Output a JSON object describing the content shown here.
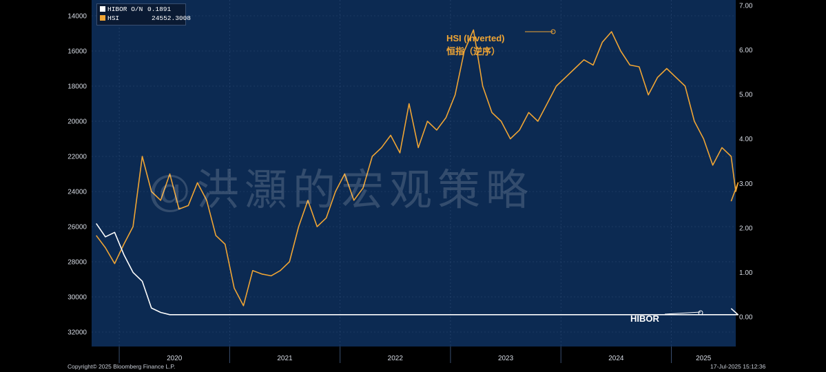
{
  "chart_data": {
    "type": "line",
    "title": "",
    "legend": {
      "placement": "top-left",
      "entries": [
        {
          "name": "HIBOR O/N",
          "last_value": "0.1891",
          "color": "#ffffff"
        },
        {
          "name": "HSI",
          "last_value": "24552.3008",
          "color": "#f0a534"
        }
      ]
    },
    "left_axis": {
      "series": "HSI",
      "inverted": true,
      "range": [
        14000,
        32000
      ],
      "ticks": [
        "14000",
        "16000",
        "18000",
        "20000",
        "22000",
        "24000",
        "26000",
        "28000",
        "30000",
        "32000"
      ]
    },
    "right_axis": {
      "series": "HIBOR O/N",
      "range": [
        0,
        7
      ],
      "ticks": [
        "0.00",
        "1.00",
        "2.00",
        "3.00",
        "4.00",
        "5.00",
        "6.00",
        "7.00"
      ]
    },
    "x_axis": {
      "range": [
        "2019-10",
        "2025-07"
      ],
      "year_labels": [
        "2020",
        "2021",
        "2022",
        "2023",
        "2024",
        "2025"
      ]
    },
    "grid": true,
    "series": [
      {
        "name": "HSI",
        "axis": "left",
        "color": "#f0a534",
        "points": [
          [
            "2019-10",
            26500
          ],
          [
            "2019-11",
            27200
          ],
          [
            "2019-12",
            28100
          ],
          [
            "2020-01",
            27000
          ],
          [
            "2020-02",
            26000
          ],
          [
            "2020-03",
            22000
          ],
          [
            "2020-04",
            24000
          ],
          [
            "2020-05",
            24500
          ],
          [
            "2020-06",
            23000
          ],
          [
            "2020-07",
            25000
          ],
          [
            "2020-08",
            24800
          ],
          [
            "2020-09",
            23500
          ],
          [
            "2020-10",
            24500
          ],
          [
            "2020-11",
            26500
          ],
          [
            "2020-12",
            27000
          ],
          [
            "2021-01",
            29500
          ],
          [
            "2021-02",
            30500
          ],
          [
            "2021-03",
            28500
          ],
          [
            "2021-04",
            28700
          ],
          [
            "2021-05",
            28800
          ],
          [
            "2021-06",
            28500
          ],
          [
            "2021-07",
            28000
          ],
          [
            "2021-08",
            26000
          ],
          [
            "2021-09",
            24500
          ],
          [
            "2021-10",
            26000
          ],
          [
            "2021-11",
            25500
          ],
          [
            "2021-12",
            24000
          ],
          [
            "2022-01",
            23000
          ],
          [
            "2022-02",
            24500
          ],
          [
            "2022-03",
            23800
          ],
          [
            "2022-04",
            22000
          ],
          [
            "2022-05",
            21500
          ],
          [
            "2022-06",
            20800
          ],
          [
            "2022-07",
            21800
          ],
          [
            "2022-08",
            19000
          ],
          [
            "2022-09",
            21500
          ],
          [
            "2022-10",
            20000
          ],
          [
            "2022-11",
            20500
          ],
          [
            "2022-12",
            19800
          ],
          [
            "2023-01",
            18500
          ],
          [
            "2023-02",
            16000
          ],
          [
            "2023-03",
            14800
          ],
          [
            "2023-04",
            18000
          ],
          [
            "2023-05",
            19500
          ],
          [
            "2023-06",
            20000
          ],
          [
            "2023-07",
            21000
          ],
          [
            "2023-08",
            20500
          ],
          [
            "2023-09",
            19500
          ],
          [
            "2023-10",
            20000
          ],
          [
            "2023-11",
            19000
          ],
          [
            "2023-12",
            18000
          ],
          [
            "2024-01",
            17500
          ],
          [
            "2024-02",
            17000
          ],
          [
            "2024-03",
            16500
          ],
          [
            "2024-04",
            16800
          ],
          [
            "2024-05",
            15500
          ],
          [
            "2024-06",
            14900
          ],
          [
            "2024-07",
            16000
          ],
          [
            "2024-08",
            16800
          ],
          [
            "2024-09",
            16900
          ],
          [
            "2024-10",
            18500
          ],
          [
            "2024-11",
            17500
          ],
          [
            "2024-12",
            17000
          ],
          [
            "2025-01",
            17500
          ],
          [
            "2025-02",
            18000
          ],
          [
            "2025-03",
            20000
          ],
          [
            "2025-04",
            21000
          ],
          [
            "2025-05",
            22500
          ],
          [
            "2025-06",
            21500
          ],
          [
            "2025-07",
            22000
          ],
          [
            "2025-07",
            24000
          ],
          [
            "2025-07",
            23500
          ],
          [
            "2025-07",
            24552
          ]
        ]
      },
      {
        "name": "HIBOR O/N",
        "axis": "right",
        "color": "#ffffff",
        "points": [
          [
            "2019-10",
            2.1
          ],
          [
            "2019-11",
            1.8
          ],
          [
            "2019-12",
            1.9
          ],
          [
            "2020-01",
            1.4
          ],
          [
            "2020-02",
            1.0
          ],
          [
            "2020-03",
            0.8
          ],
          [
            "2020-04",
            0.2
          ],
          [
            "2020-05",
            0.1
          ],
          [
            "2020-06",
            0.05
          ],
          [
            "2020-07",
            0.05
          ],
          [
            "2020-08",
            0.05
          ],
          [
            "2020-09",
            0.05
          ],
          [
            "2020-10",
            0.05
          ],
          [
            "2020-11",
            0.05
          ],
          [
            "2020-12",
            0.05
          ],
          [
            "2021-01",
            0.05
          ],
          [
            "2021-02",
            0.05
          ],
          [
            "2021-03",
            0.05
          ],
          [
            "2021-04",
            0.05
          ],
          [
            "2021-05",
            0.05
          ],
          [
            "2021-06",
            0.05
          ],
          [
            "2021-07",
            0.05
          ],
          [
            "2021-08",
            0.05
          ],
          [
            "2021-09",
            0.05
          ],
          [
            "2021-10",
            0.05
          ],
          [
            "2021-11",
            0.05
          ],
          [
            "2021-12",
            0.05
          ],
          [
            "2022-01",
            0.05
          ],
          [
            "2022-02",
            0.05
          ],
          [
            "2022-03",
            0.05
          ],
          [
            "2022-04",
            0.05
          ],
          [
            "2022-05",
            0.05
          ],
          [
            "2022-06",
            0.05
          ],
          [
            "2022-07",
            0.05
          ],
          [
            "2022-08",
            0.05
          ],
          [
            "2022-09",
            0.05
          ],
          [
            "2022-10",
            0.05
          ],
          [
            "2022-11",
            0.05
          ],
          [
            "2022-12",
            0.05
          ],
          [
            "2023-01",
            0.05
          ],
          [
            "2023-02",
            0.05
          ],
          [
            "2023-03",
            0.05
          ],
          [
            "2023-04",
            0.05
          ],
          [
            "2023-05",
            0.05
          ],
          [
            "2023-06",
            0.05
          ],
          [
            "2023-07",
            0.05
          ],
          [
            "2023-08",
            0.05
          ],
          [
            "2023-09",
            0.05
          ],
          [
            "2023-10",
            0.05
          ],
          [
            "2023-11",
            0.05
          ],
          [
            "2023-12",
            0.05
          ],
          [
            "2024-01",
            0.05
          ],
          [
            "2024-02",
            0.05
          ],
          [
            "2024-03",
            0.05
          ],
          [
            "2024-04",
            0.05
          ],
          [
            "2024-05",
            0.05
          ],
          [
            "2024-06",
            0.05
          ],
          [
            "2024-07",
            0.05
          ],
          [
            "2024-08",
            0.05
          ],
          [
            "2024-09",
            0.05
          ],
          [
            "2024-10",
            0.05
          ],
          [
            "2024-11",
            0.05
          ],
          [
            "2024-12",
            0.05
          ],
          [
            "2025-01",
            0.05
          ],
          [
            "2025-02",
            0.05
          ],
          [
            "2025-03",
            0.05
          ],
          [
            "2025-04",
            0.05
          ],
          [
            "2025-05",
            0.05
          ],
          [
            "2025-06",
            0.05
          ],
          [
            "2025-07",
            0.05
          ],
          [
            "2025-07",
            0.05
          ],
          [
            "2025-07",
            0.05
          ],
          [
            "2025-07",
            0.1891
          ]
        ]
      }
    ],
    "annotations": [
      {
        "text": "HSI (Inverted)",
        "subtext": "恒指（逆序）",
        "color": "#f0a534"
      },
      {
        "text": "HIBOR",
        "color": "#ffffff"
      }
    ]
  },
  "watermark": "@洪灝的宏观策略",
  "footer": {
    "copyright": "Copyright© 2025 Bloomberg Finance L.P.",
    "timestamp": "17-Jul-2025  15:12:36"
  }
}
